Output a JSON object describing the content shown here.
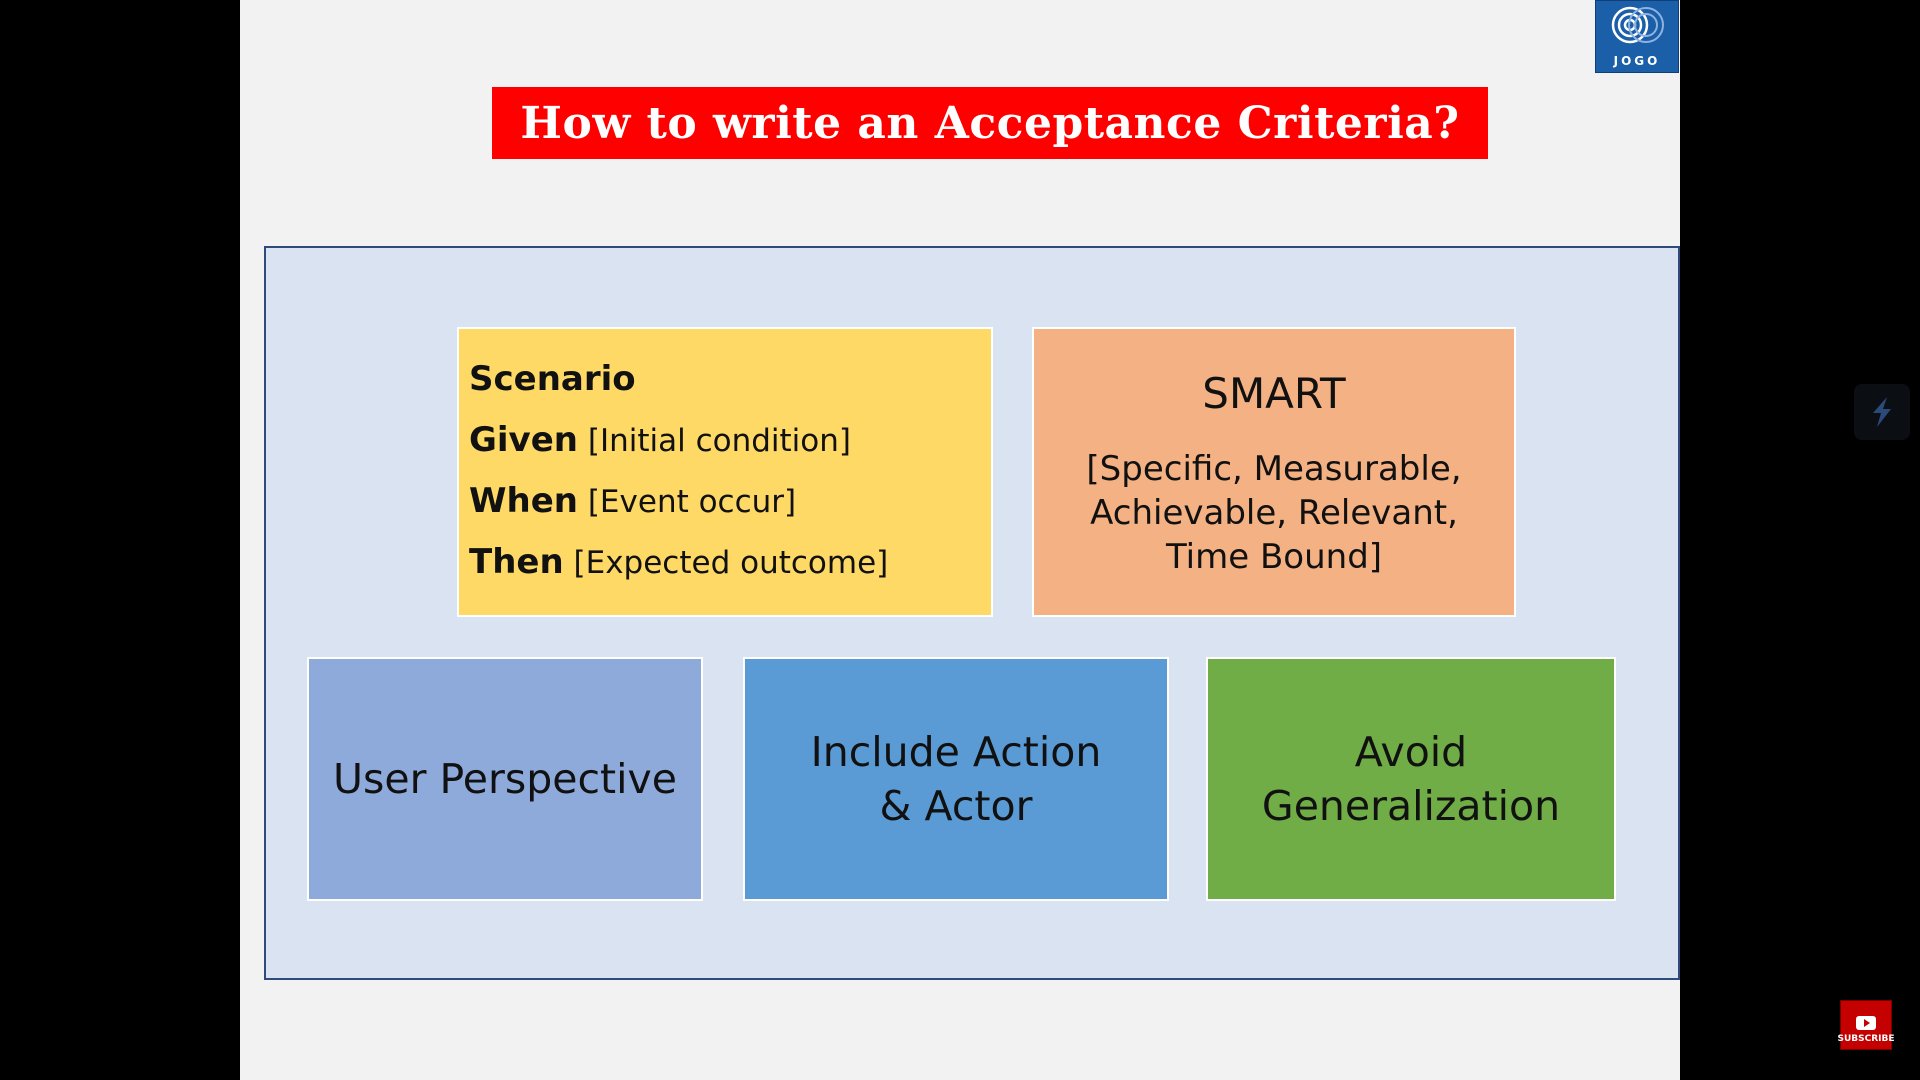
{
  "logo": {
    "text": "JOGO"
  },
  "title": "How to write an Acceptance Criteria?",
  "scenario": {
    "heading": "Scenario",
    "lines": [
      {
        "keyword": "Given",
        "text": " [Initial condition]"
      },
      {
        "keyword": "When",
        "text": " [Event occur]"
      },
      {
        "keyword": "Then",
        "text": " [Expected outcome]"
      }
    ]
  },
  "smart": {
    "title": "SMART",
    "description": "[Specific, Measurable, Achievable, Relevant, Time Bound]"
  },
  "boxes": [
    "User Perspective",
    "Include Action & Actor",
    "Avoid Generalization"
  ],
  "subscribe": {
    "label": "SUBSCRIBE"
  },
  "colors": {
    "title_bg": "#ff0000",
    "frame_bg": "#dae3f2",
    "scenario_bg": "#ffd966",
    "smart_bg": "#f4b183",
    "box1_bg": "#8eaadb",
    "box2_bg": "#5b9bd5",
    "box3_bg": "#70ad47"
  },
  "icons": {
    "logo": "concentric-circles-icon",
    "side": "lightning-icon",
    "subscribe": "play-icon"
  }
}
